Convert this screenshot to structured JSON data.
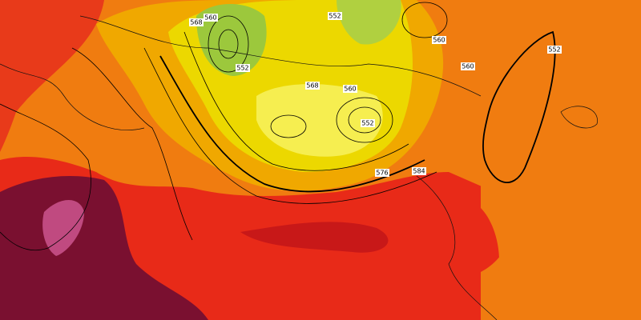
{
  "contour_labels": [
    "568",
    "560",
    "552",
    "552",
    "568",
    "560",
    "552",
    "576",
    "584",
    "560",
    "552",
    "560"
  ]
}
